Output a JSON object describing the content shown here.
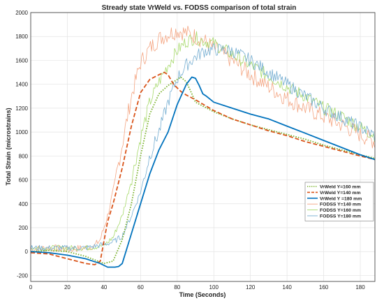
{
  "chart_data": {
    "type": "line",
    "title": "Stready state VrWeld vs. FODSS comparison of total strain",
    "xlabel": "Time (Seconds)",
    "ylabel": "Total Strain (microstrains)",
    "xlim": [
      0,
      188
    ],
    "ylim": [
      -250,
      2000
    ],
    "xticks": [
      0,
      20,
      40,
      60,
      80,
      100,
      120,
      140,
      160,
      180
    ],
    "yticks": [
      -200,
      0,
      200,
      400,
      600,
      800,
      1000,
      1200,
      1400,
      1600,
      1800,
      2000
    ],
    "grid": true,
    "legend_position": "lower-right",
    "series": [
      {
        "name": "VrWeld Y=160 mm",
        "color": "#7bb22e",
        "style": "dotted",
        "noise": 0,
        "x": [
          0,
          10,
          20,
          30,
          35,
          40,
          45,
          50,
          55,
          60,
          65,
          70,
          75,
          80,
          82,
          85,
          88,
          90,
          95,
          100,
          110,
          120,
          130,
          140,
          150,
          160,
          170,
          180,
          188
        ],
        "y": [
          0,
          10,
          0,
          -40,
          -70,
          -100,
          -80,
          100,
          400,
          800,
          1150,
          1320,
          1390,
          1440,
          1460,
          1420,
          1320,
          1250,
          1210,
          1170,
          1110,
          1060,
          1020,
          980,
          940,
          890,
          850,
          810,
          780
        ]
      },
      {
        "name": "VrWeld Y=140 mm",
        "color": "#d95319",
        "style": "dashed",
        "noise": 0,
        "x": [
          0,
          10,
          20,
          30,
          35,
          38,
          42,
          45,
          50,
          55,
          60,
          65,
          70,
          73,
          75,
          78,
          82,
          85,
          90,
          100,
          110,
          120,
          130,
          140,
          150,
          160,
          170,
          180,
          188
        ],
        "y": [
          -10,
          -20,
          -60,
          -100,
          -110,
          -80,
          250,
          400,
          700,
          1050,
          1330,
          1440,
          1480,
          1500,
          1480,
          1400,
          1340,
          1310,
          1270,
          1180,
          1110,
          1060,
          1010,
          970,
          920,
          880,
          840,
          800,
          770
        ]
      },
      {
        "name": "VrWeld Y =180 mm",
        "color": "#0072bd",
        "style": "solid",
        "noise": 0,
        "x": [
          0,
          10,
          20,
          30,
          38,
          42,
          46,
          48,
          50,
          54,
          60,
          65,
          70,
          75,
          80,
          85,
          88,
          90,
          92,
          94,
          96,
          100,
          110,
          120,
          130,
          140,
          150,
          160,
          170,
          180,
          188
        ],
        "y": [
          0,
          -10,
          -30,
          -60,
          -100,
          -130,
          -130,
          -125,
          -100,
          100,
          400,
          650,
          850,
          1000,
          1230,
          1400,
          1460,
          1450,
          1390,
          1320,
          1300,
          1250,
          1200,
          1150,
          1110,
          1050,
          990,
          930,
          870,
          810,
          770
        ]
      },
      {
        "name": "FODSS Y=140 mm",
        "color": "#f4a582",
        "style": "noisy",
        "noise": 45,
        "x": [
          0,
          10,
          20,
          30,
          35,
          38,
          42,
          45,
          50,
          55,
          60,
          65,
          70,
          75,
          80,
          85,
          90,
          95,
          100,
          110,
          120,
          130,
          140,
          150,
          160,
          170,
          180,
          188
        ],
        "y": [
          20,
          30,
          20,
          30,
          50,
          100,
          300,
          500,
          900,
          1300,
          1580,
          1700,
          1780,
          1820,
          1850,
          1830,
          1800,
          1760,
          1700,
          1600,
          1480,
          1380,
          1280,
          1200,
          1130,
          1060,
          980,
          920
        ]
      },
      {
        "name": "FODSS Y=160 mm",
        "color": "#a6d96a",
        "style": "noisy",
        "noise": 35,
        "x": [
          0,
          10,
          20,
          30,
          40,
          45,
          50,
          55,
          60,
          65,
          70,
          75,
          80,
          85,
          90,
          95,
          100,
          110,
          120,
          130,
          140,
          150,
          160,
          170,
          180,
          188
        ],
        "y": [
          30,
          30,
          30,
          30,
          50,
          120,
          300,
          600,
          950,
          1250,
          1420,
          1560,
          1680,
          1760,
          1790,
          1760,
          1740,
          1650,
          1560,
          1470,
          1380,
          1300,
          1200,
          1130,
          1040,
          970
        ]
      },
      {
        "name": "FODSS Y=180 mm",
        "color": "#74add1",
        "style": "noisy",
        "noise": 35,
        "x": [
          0,
          10,
          20,
          30,
          40,
          45,
          50,
          55,
          60,
          65,
          70,
          75,
          80,
          85,
          90,
          95,
          100,
          105,
          110,
          120,
          130,
          140,
          150,
          160,
          170,
          180,
          188
        ],
        "y": [
          30,
          30,
          30,
          30,
          60,
          80,
          130,
          300,
          500,
          800,
          1000,
          1250,
          1450,
          1560,
          1630,
          1680,
          1690,
          1690,
          1680,
          1600,
          1500,
          1400,
          1300,
          1200,
          1120,
          1040,
          970
        ]
      }
    ]
  }
}
